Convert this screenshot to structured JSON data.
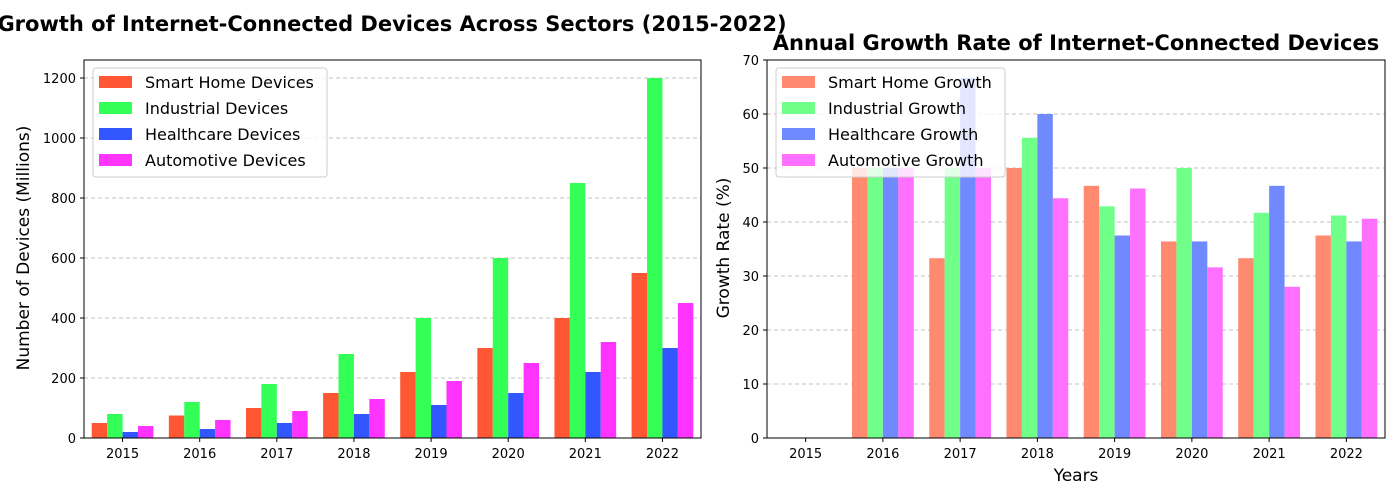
{
  "chart_data": [
    {
      "type": "bar",
      "title": "Growth of Internet-Connected Devices Across Sectors (2015-2022)",
      "xlabel": "",
      "ylabel": "Number of Devices (Millions)",
      "categories": [
        "2015",
        "2016",
        "2017",
        "2018",
        "2019",
        "2020",
        "2021",
        "2022"
      ],
      "ylim": [
        0,
        1260
      ],
      "yticks": [
        0,
        200,
        400,
        600,
        800,
        1000,
        1200
      ],
      "grid": "y-dashed",
      "legend_position": "top-left",
      "series": [
        {
          "name": "Smart Home Devices",
          "color": "#ff5733",
          "values": [
            50,
            75,
            100,
            150,
            220,
            300,
            400,
            550
          ]
        },
        {
          "name": "Industrial Devices",
          "color": "#33ff57",
          "values": [
            80,
            120,
            180,
            280,
            400,
            600,
            850,
            1200
          ]
        },
        {
          "name": "Healthcare Devices",
          "color": "#3357ff",
          "values": [
            20,
            30,
            50,
            80,
            110,
            150,
            220,
            300
          ]
        },
        {
          "name": "Automotive Devices",
          "color": "#ff33ff",
          "values": [
            40,
            60,
            90,
            130,
            190,
            250,
            320,
            450
          ]
        }
      ]
    },
    {
      "type": "bar",
      "title": "Annual Growth Rate of Internet-Connected Devices",
      "xlabel": "Years",
      "ylabel": "Growth Rate (%)",
      "categories": [
        "2015",
        "2016",
        "2017",
        "2018",
        "2019",
        "2020",
        "2021",
        "2022"
      ],
      "ylim": [
        0,
        70
      ],
      "yticks": [
        0,
        10,
        20,
        30,
        40,
        50,
        60,
        70
      ],
      "grid": "y-dashed",
      "legend_position": "top-left",
      "series": [
        {
          "name": "Smart Home Growth",
          "color": "#ff8a70",
          "values": [
            0,
            50,
            33.3,
            50,
            46.7,
            36.4,
            33.3,
            37.5
          ]
        },
        {
          "name": "Industrial Growth",
          "color": "#70ff89",
          "values": [
            0,
            50,
            50,
            55.6,
            42.9,
            50,
            41.7,
            41.2
          ]
        },
        {
          "name": "Healthcare Growth",
          "color": "#7089ff",
          "values": [
            0,
            50,
            66.7,
            60,
            37.5,
            36.4,
            46.7,
            36.4
          ]
        },
        {
          "name": "Automotive Growth",
          "color": "#ff70ff",
          "values": [
            0,
            50,
            50,
            44.4,
            46.2,
            31.6,
            28,
            40.6
          ]
        }
      ]
    }
  ]
}
